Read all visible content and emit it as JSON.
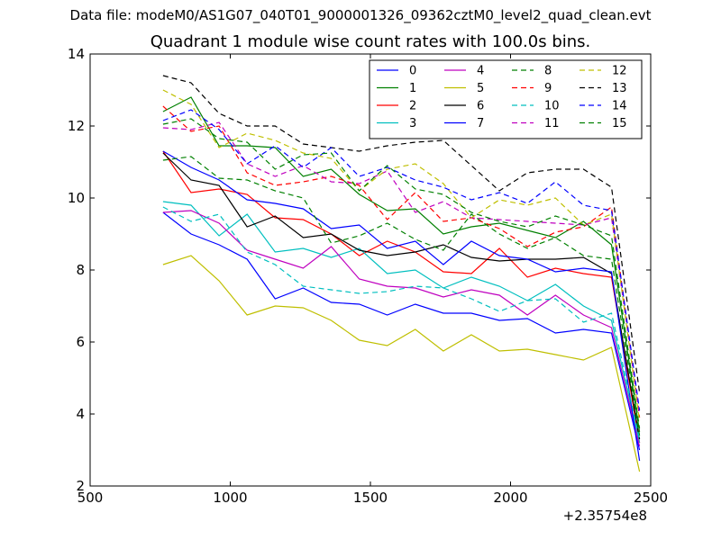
{
  "figure": {
    "header": "Data file: modeM0/AS1G07_040T01_9000001326_09362cztM0_level2_quad_clean.evt"
  },
  "chart_data": {
    "type": "line",
    "title": "Quadrant 1 module wise count rates with 100.0s bins.",
    "xlabel": "",
    "ylabel": "",
    "x_offset_label": "+2.35754e8",
    "xlim": [
      500,
      2500
    ],
    "ylim": [
      2,
      14
    ],
    "x_ticks": [
      500,
      1000,
      1500,
      2000,
      2500
    ],
    "y_ticks": [
      2,
      4,
      6,
      8,
      10,
      12,
      14
    ],
    "grid": false,
    "legend_position": "top-right",
    "legend_columns": 4,
    "x": [
      760,
      860,
      960,
      1060,
      1160,
      1260,
      1360,
      1460,
      1560,
      1660,
      1760,
      1860,
      1960,
      2060,
      2160,
      2260,
      2360,
      2460
    ],
    "series": [
      {
        "name": "0",
        "color": "#0000ff",
        "dash": "solid",
        "values": [
          9.6,
          9.0,
          8.7,
          8.3,
          7.2,
          7.5,
          7.1,
          7.05,
          6.75,
          7.05,
          6.8,
          6.8,
          6.6,
          6.65,
          6.25,
          6.35,
          6.25,
          3.0
        ]
      },
      {
        "name": "1",
        "color": "#008000",
        "dash": "solid",
        "values": [
          12.4,
          12.8,
          11.45,
          11.45,
          11.4,
          10.6,
          10.8,
          10.1,
          9.65,
          9.7,
          9.0,
          9.2,
          9.3,
          9.1,
          8.9,
          9.35,
          8.7,
          3.5
        ]
      },
      {
        "name": "2",
        "color": "#ff0000",
        "dash": "solid",
        "values": [
          11.3,
          10.15,
          10.25,
          10.1,
          9.45,
          9.4,
          9.0,
          8.4,
          8.8,
          8.5,
          7.95,
          7.9,
          8.6,
          7.8,
          8.05,
          7.9,
          7.8,
          3.2
        ]
      },
      {
        "name": "3",
        "color": "#00bfbf",
        "dash": "solid",
        "values": [
          9.9,
          9.8,
          8.95,
          9.55,
          8.5,
          8.6,
          8.35,
          8.6,
          7.9,
          8.0,
          7.5,
          7.8,
          7.55,
          7.15,
          7.6,
          7.0,
          6.6,
          3.2
        ]
      },
      {
        "name": "4",
        "color": "#bf00bf",
        "dash": "solid",
        "values": [
          9.6,
          9.65,
          9.3,
          8.55,
          8.3,
          8.05,
          8.65,
          7.75,
          7.55,
          7.5,
          7.25,
          7.45,
          7.3,
          6.75,
          7.3,
          6.75,
          6.4,
          3.1
        ]
      },
      {
        "name": "5",
        "color": "#bfbf00",
        "dash": "solid",
        "values": [
          8.15,
          8.4,
          7.7,
          6.75,
          7.0,
          6.95,
          6.6,
          6.05,
          5.9,
          6.35,
          5.75,
          6.2,
          5.75,
          5.8,
          5.65,
          5.5,
          5.85,
          2.4
        ]
      },
      {
        "name": "6",
        "color": "#000000",
        "dash": "solid",
        "values": [
          11.25,
          10.5,
          10.35,
          9.2,
          9.5,
          8.9,
          9.0,
          8.55,
          8.4,
          8.5,
          8.7,
          8.35,
          8.25,
          8.3,
          8.3,
          8.35,
          7.9,
          3.3
        ]
      },
      {
        "name": "7",
        "color": "#0000ff",
        "dash": "solid",
        "values": [
          11.3,
          10.85,
          10.5,
          9.95,
          9.85,
          9.7,
          9.15,
          9.25,
          8.6,
          8.8,
          8.15,
          8.8,
          8.4,
          8.3,
          7.95,
          8.05,
          7.95,
          2.7
        ]
      },
      {
        "name": "8",
        "color": "#008000",
        "dash": "dashed",
        "values": [
          11.05,
          11.15,
          10.55,
          10.5,
          10.2,
          10.0,
          8.75,
          8.95,
          9.3,
          8.85,
          8.55,
          9.55,
          9.0,
          8.6,
          8.9,
          8.4,
          8.3,
          3.4
        ]
      },
      {
        "name": "9",
        "color": "#ff0000",
        "dash": "dashed",
        "values": [
          12.55,
          11.85,
          12.0,
          10.7,
          10.35,
          10.45,
          10.6,
          10.35,
          9.4,
          10.15,
          9.35,
          9.45,
          9.15,
          8.65,
          9.05,
          9.2,
          9.75,
          3.9
        ]
      },
      {
        "name": "10",
        "color": "#00bfbf",
        "dash": "dashed",
        "values": [
          9.75,
          9.35,
          9.55,
          8.5,
          8.15,
          7.55,
          7.45,
          7.35,
          7.4,
          7.55,
          7.5,
          7.2,
          6.85,
          7.15,
          7.2,
          6.55,
          6.8,
          3.3
        ]
      },
      {
        "name": "11",
        "color": "#bf00bf",
        "dash": "dashed",
        "values": [
          11.95,
          11.9,
          12.1,
          10.95,
          10.6,
          10.9,
          10.45,
          10.4,
          10.75,
          9.6,
          9.9,
          9.45,
          9.4,
          9.35,
          9.3,
          9.25,
          9.45,
          4.0
        ]
      },
      {
        "name": "12",
        "color": "#bfbf00",
        "dash": "dashed",
        "values": [
          13.0,
          12.6,
          11.4,
          11.8,
          11.6,
          11.25,
          11.1,
          10.2,
          10.8,
          10.95,
          10.4,
          9.45,
          9.95,
          9.8,
          10.0,
          9.25,
          9.55,
          3.8
        ]
      },
      {
        "name": "13",
        "color": "#000000",
        "dash": "dashed",
        "values": [
          13.4,
          13.2,
          12.35,
          12.0,
          12.0,
          11.5,
          11.4,
          11.3,
          11.45,
          11.55,
          11.6,
          10.9,
          10.2,
          10.7,
          10.8,
          10.8,
          10.3,
          4.6
        ]
      },
      {
        "name": "14",
        "color": "#0000ff",
        "dash": "dashed",
        "values": [
          12.15,
          12.45,
          11.9,
          10.95,
          11.45,
          10.85,
          11.4,
          10.6,
          10.85,
          10.5,
          10.3,
          9.95,
          10.15,
          9.85,
          10.45,
          9.8,
          9.65,
          4.1
        ]
      },
      {
        "name": "15",
        "color": "#008000",
        "dash": "dashed",
        "values": [
          12.05,
          12.2,
          11.65,
          11.55,
          10.8,
          11.2,
          11.25,
          10.2,
          10.9,
          10.25,
          10.1,
          9.6,
          9.35,
          9.2,
          9.5,
          9.25,
          8.95,
          3.6
        ]
      }
    ]
  }
}
